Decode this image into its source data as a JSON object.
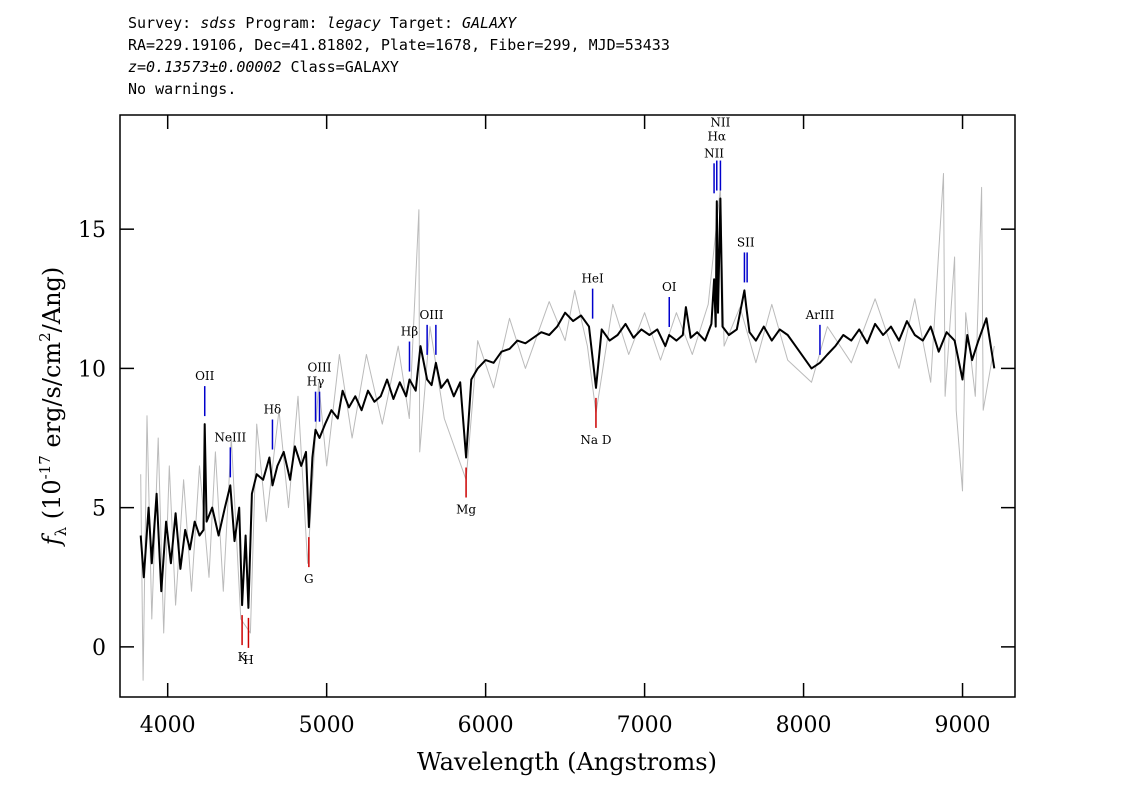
{
  "chart_data": {
    "type": "line",
    "header": [
      [
        {
          "text": "Survey:",
          "italic": false
        },
        {
          "text": "sdss",
          "italic": true
        },
        {
          "text": "Program:",
          "italic": false
        },
        {
          "text": "legacy",
          "italic": true
        },
        {
          "text": "Target:",
          "italic": false
        },
        {
          "text": "GALAXY",
          "italic": true
        }
      ],
      [
        {
          "text": "RA=229.19106, Dec=41.81802, Plate=1678, Fiber=299, MJD=53433",
          "italic": false
        }
      ],
      [
        {
          "text": "z=0.13573±0.00002",
          "italic": true
        },
        {
          "text": "Class=GALAXY",
          "italic": false
        }
      ],
      [
        {
          "text": "No warnings.",
          "italic": false
        }
      ]
    ],
    "x_label": "Wavelength (Angstroms)",
    "y_label": [
      {
        "text": "f",
        "italic": true,
        "shift": "none"
      },
      {
        "text": "λ",
        "italic": false,
        "shift": "sub"
      },
      {
        "text": " (10",
        "italic": false,
        "shift": "none"
      },
      {
        "text": "-17",
        "italic": false,
        "shift": "sup"
      },
      {
        "text": " erg/s/cm",
        "italic": false,
        "shift": "none"
      },
      {
        "text": "2",
        "italic": false,
        "shift": "sup"
      },
      {
        "text": "/Ang)",
        "italic": false,
        "shift": "none"
      }
    ],
    "xlim": [
      3700,
      9330
    ],
    "ylim": [
      -1.8,
      19.1
    ],
    "xticks": [
      4000,
      5000,
      6000,
      7000,
      8000,
      9000
    ],
    "yticks": [
      0,
      5,
      10,
      15
    ],
    "series": [
      {
        "name": "flux",
        "color": "#bbbbbb",
        "x": [
          3830,
          3845,
          3870,
          3900,
          3940,
          3975,
          4010,
          4050,
          4100,
          4150,
          4200,
          4260,
          4300,
          4350,
          4400,
          4460,
          4520,
          4560,
          4620,
          4700,
          4760,
          4820,
          4880,
          4950,
          5000,
          5080,
          5160,
          5250,
          5350,
          5450,
          5520,
          5580,
          5585,
          5650,
          5740,
          5877,
          5950,
          6050,
          6150,
          6250,
          6400,
          6500,
          6560,
          6640,
          6694,
          6800,
          6900,
          7000,
          7100,
          7200,
          7300,
          7400,
          7477,
          7500,
          7600,
          7700,
          7800,
          7900,
          8050,
          8150,
          8300,
          8450,
          8600,
          8700,
          8800,
          8880,
          8890,
          8950,
          8960,
          9000,
          9020,
          9080,
          9120,
          9130,
          9200
        ],
        "values": [
          6.2,
          -1.2,
          8.3,
          1.0,
          7.5,
          0.5,
          6.5,
          1.5,
          6.0,
          2.0,
          6.5,
          2.5,
          7.0,
          2.0,
          7.5,
          1.0,
          0.5,
          8.0,
          4.5,
          8.5,
          5.0,
          9.0,
          3.0,
          9.5,
          6.5,
          10.5,
          7.5,
          10.5,
          8.0,
          10.8,
          8.2,
          15.7,
          7.0,
          11.5,
          8.2,
          6.0,
          11.0,
          9.3,
          11.8,
          10.0,
          12.4,
          11.0,
          12.8,
          10.8,
          8.4,
          12.3,
          10.5,
          12.0,
          10.3,
          12.0,
          10.5,
          12.3,
          16.5,
          10.8,
          12.2,
          10.2,
          12.3,
          10.3,
          9.5,
          11.5,
          10.2,
          12.5,
          10.0,
          12.5,
          9.5,
          17.0,
          9.0,
          14.0,
          8.5,
          5.6,
          12.0,
          9.0,
          16.5,
          8.5,
          10.8
        ]
      },
      {
        "name": "smoothed flux",
        "color": "#000000",
        "x": [
          3830,
          3850,
          3880,
          3900,
          3930,
          3960,
          3990,
          4020,
          4050,
          4080,
          4110,
          4140,
          4170,
          4200,
          4225,
          4233,
          4245,
          4280,
          4320,
          4360,
          4394,
          4420,
          4450,
          4468,
          4490,
          4508,
          4530,
          4560,
          4600,
          4640,
          4659,
          4690,
          4730,
          4770,
          4800,
          4840,
          4870,
          4888,
          4910,
          4930,
          4955,
          4990,
          5030,
          5070,
          5100,
          5140,
          5180,
          5220,
          5260,
          5300,
          5340,
          5380,
          5420,
          5460,
          5500,
          5521,
          5560,
          5590,
          5632,
          5660,
          5687,
          5720,
          5760,
          5800,
          5840,
          5877,
          5910,
          5950,
          6000,
          6050,
          6100,
          6150,
          6200,
          6250,
          6300,
          6350,
          6400,
          6450,
          6500,
          6550,
          6600,
          6650,
          6694,
          6730,
          6780,
          6830,
          6880,
          6930,
          6980,
          7030,
          7080,
          7130,
          7155,
          7200,
          7240,
          7260,
          7290,
          7330,
          7380,
          7420,
          7437,
          7447,
          7454,
          7462,
          7477,
          7490,
          7530,
          7580,
          7628,
          7640,
          7660,
          7700,
          7750,
          7800,
          7850,
          7900,
          7950,
          8000,
          8050,
          8103,
          8150,
          8200,
          8250,
          8300,
          8350,
          8400,
          8450,
          8500,
          8550,
          8600,
          8650,
          8700,
          8750,
          8800,
          8850,
          8900,
          8950,
          9000,
          9030,
          9060,
          9100,
          9150,
          9200
        ],
        "values": [
          4.0,
          2.5,
          5.0,
          3.0,
          5.5,
          2.0,
          4.5,
          3.0,
          4.8,
          2.8,
          4.2,
          3.5,
          4.5,
          4.0,
          4.2,
          8.0,
          4.5,
          5.0,
          4.0,
          5.0,
          5.8,
          3.8,
          5.0,
          1.5,
          4.0,
          1.4,
          5.5,
          6.2,
          6.0,
          6.8,
          5.8,
          6.5,
          7.0,
          6.0,
          7.2,
          6.5,
          7.0,
          4.3,
          6.8,
          7.8,
          7.5,
          8.0,
          8.5,
          8.2,
          9.2,
          8.6,
          9.0,
          8.5,
          9.2,
          8.8,
          9.0,
          9.6,
          8.9,
          9.5,
          9.0,
          9.6,
          9.2,
          10.8,
          9.6,
          9.4,
          10.2,
          9.3,
          9.6,
          9.0,
          9.5,
          6.8,
          9.6,
          10.0,
          10.3,
          10.2,
          10.6,
          10.7,
          11.0,
          10.9,
          11.1,
          11.3,
          11.2,
          11.5,
          12.0,
          11.7,
          11.9,
          11.5,
          9.3,
          11.4,
          11.0,
          11.2,
          11.6,
          11.1,
          11.4,
          11.2,
          11.4,
          10.8,
          11.2,
          11.0,
          11.2,
          12.2,
          11.1,
          11.3,
          11.0,
          11.6,
          13.2,
          11.5,
          16.0,
          12.0,
          16.1,
          11.5,
          11.2,
          11.4,
          12.8,
          12.2,
          11.3,
          11.0,
          11.5,
          11.0,
          11.4,
          11.2,
          10.8,
          10.4,
          10.0,
          10.2,
          10.5,
          10.8,
          11.2,
          11.0,
          11.4,
          10.9,
          11.6,
          11.2,
          11.5,
          11.0,
          11.7,
          11.2,
          11.0,
          11.5,
          10.6,
          11.3,
          11.0,
          9.6,
          11.2,
          10.3,
          11.0,
          11.8,
          10.0
        ]
      }
    ],
    "line_colors": {
      "emission": "#0000cc",
      "absorption": "#cc0000"
    },
    "annotations": [
      {
        "label": "OII",
        "kind": "emission",
        "wavelengths": [
          4233
        ]
      },
      {
        "label": "NeIII",
        "kind": "emission",
        "wavelengths": [
          4394
        ]
      },
      {
        "label": "Hδ",
        "kind": "emission",
        "wavelengths": [
          4659
        ]
      },
      {
        "label": "Hγ",
        "kind": "emission",
        "wavelengths": [
          4930
        ]
      },
      {
        "label": "OIII",
        "kind": "emission",
        "wavelengths": [
          4955
        ]
      },
      {
        "label": "Hβ",
        "kind": "emission",
        "wavelengths": [
          5521
        ]
      },
      {
        "label": "OIII",
        "kind": "emission",
        "wavelengths": [
          5632,
          5687
        ]
      },
      {
        "label": "HeI",
        "kind": "emission",
        "wavelengths": [
          6673
        ]
      },
      {
        "label": "OI",
        "kind": "emission",
        "wavelengths": [
          7155
        ]
      },
      {
        "label": "NII",
        "kind": "emission",
        "wavelengths": [
          7437
        ]
      },
      {
        "label": "Hα",
        "kind": "emission",
        "wavelengths": [
          7454
        ]
      },
      {
        "label": "NII",
        "kind": "emission",
        "wavelengths": [
          7477
        ]
      },
      {
        "label": "SII",
        "kind": "emission",
        "wavelengths": [
          7628,
          7645
        ]
      },
      {
        "label": "ArIII",
        "kind": "emission",
        "wavelengths": [
          8103
        ]
      },
      {
        "label": "K",
        "kind": "absorption",
        "wavelengths": [
          4468
        ]
      },
      {
        "label": "H",
        "kind": "absorption",
        "wavelengths": [
          4508
        ]
      },
      {
        "label": "G",
        "kind": "absorption",
        "wavelengths": [
          4888
        ]
      },
      {
        "label": "Mg",
        "kind": "absorption",
        "wavelengths": [
          5877
        ]
      },
      {
        "label": "Na D",
        "kind": "absorption",
        "wavelengths": [
          6694
        ]
      }
    ]
  }
}
